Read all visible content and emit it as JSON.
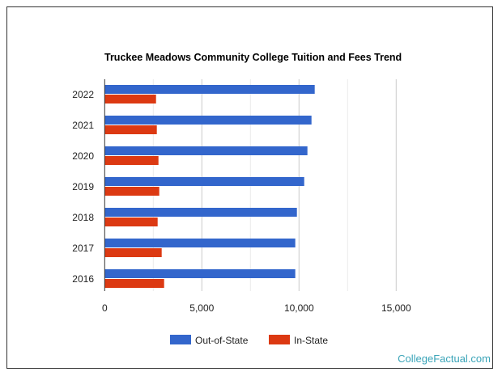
{
  "chart_data": {
    "type": "bar",
    "orientation": "horizontal",
    "title": "Truckee Meadows Community College Tuition and Fees Trend",
    "categories": [
      "2022",
      "2021",
      "2020",
      "2019",
      "2018",
      "2017",
      "2016"
    ],
    "series": [
      {
        "name": "Out-of-State",
        "color": "#3366cc",
        "values": [
          10808,
          10642,
          10433,
          10267,
          9892,
          9808,
          9808
        ]
      },
      {
        "name": "In-State",
        "color": "#dc3912",
        "values": [
          2642,
          2683,
          2767,
          2808,
          2725,
          2933,
          3058
        ]
      }
    ],
    "xlim": [
      0,
      15000
    ],
    "xticks": [
      0,
      5000,
      10000,
      15000
    ],
    "xtick_labels": [
      "0",
      "5,000",
      "10,000",
      "15,000"
    ],
    "grid": true,
    "legend": "bottom"
  },
  "watermark": "CollegeFactual.com"
}
